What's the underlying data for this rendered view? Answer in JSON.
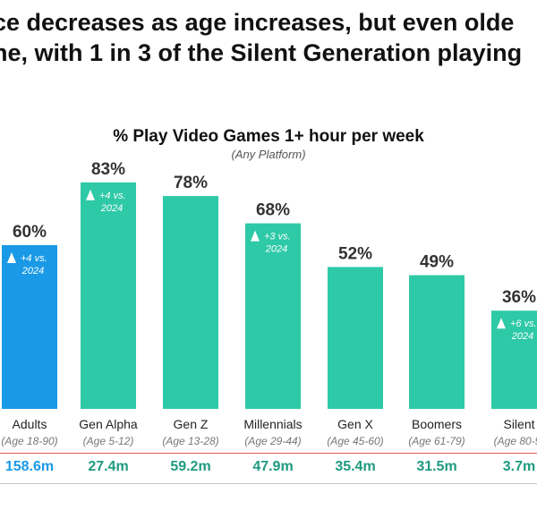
{
  "headline": {
    "line1": "ce decreases as age increases, but even olde",
    "line2": "ne, with 1 in 3 of the Silent Generation playing"
  },
  "colors": {
    "adults_bar": "#1a9ae6",
    "gen_bar": "#2ec9a7",
    "adults_pop": "#1a9ae6",
    "gen_pop": "#1f9a80",
    "separator_top": "#e0604a",
    "separator_bottom": "#c8c8c8"
  },
  "chart_data": {
    "type": "bar",
    "title": "% Play Video Games 1+ hour per week",
    "subtitle": "(Any Platform)",
    "xlabel": "",
    "ylabel": "",
    "ylim": [
      0,
      100
    ],
    "grid": false,
    "legend": "none",
    "unit": "%",
    "categories": [
      "Adults",
      "Gen Alpha",
      "Gen Z",
      "Millennials",
      "Gen X",
      "Boomers",
      "Silent"
    ],
    "age_ranges": [
      "Age 18-90",
      "Age 5-12",
      "Age 13-28",
      "Age 29-44",
      "Age 45-60",
      "Age 61-79",
      "Age 80-9"
    ],
    "values": [
      60,
      83,
      78,
      68,
      52,
      49,
      36
    ],
    "value_labels": [
      "60%",
      "83%",
      "78%",
      "68%",
      "52%",
      "49%",
      "36%"
    ],
    "annotations": [
      {
        "category": "Adults",
        "line1": "+4 vs.",
        "line2": "2024"
      },
      {
        "category": "Gen Alpha",
        "line1": "+4 vs.",
        "line2": "2024"
      },
      {
        "category": "Millennials",
        "line1": "+3 vs.",
        "line2": "2024"
      },
      {
        "category": "Silent",
        "line1": "+6 vs.",
        "line2": "2024"
      }
    ],
    "populations": [
      "158.6m",
      "27.4m",
      "59.2m",
      "47.9m",
      "35.4m",
      "31.5m",
      "3.7m"
    ]
  }
}
